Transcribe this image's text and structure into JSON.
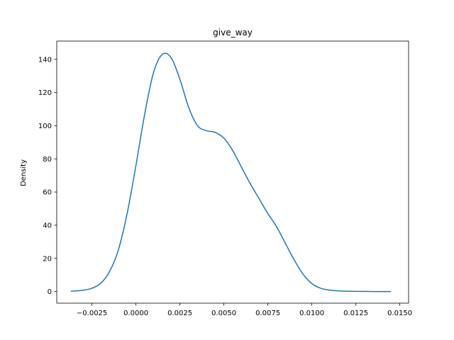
{
  "chart_data": {
    "type": "line",
    "title": "give_way",
    "xlabel": "",
    "ylabel": "Density",
    "xlim": [
      -0.0045,
      0.0155
    ],
    "ylim": [
      -7,
      151
    ],
    "xticks": [
      -0.0025,
      0.0,
      0.0025,
      0.005,
      0.0075,
      0.01,
      0.0125,
      0.015
    ],
    "xtick_labels": [
      "−0.0025",
      "0.0000",
      "0.0025",
      "0.0050",
      "0.0075",
      "0.0100",
      "0.0125",
      "0.0150"
    ],
    "yticks": [
      0,
      20,
      40,
      60,
      80,
      100,
      120,
      140
    ],
    "ytick_labels": [
      "0",
      "20",
      "40",
      "60",
      "80",
      "100",
      "120",
      "140"
    ],
    "grid": false,
    "line_color": "#1f77b4",
    "series": [
      {
        "x": [
          -0.0037,
          -0.003,
          -0.0025,
          -0.002,
          -0.0015,
          -0.001,
          -0.0005,
          0.0,
          0.0005,
          0.001,
          0.0015,
          0.002,
          0.0025,
          0.003,
          0.0035,
          0.004,
          0.0045,
          0.005,
          0.0055,
          0.006,
          0.0065,
          0.007,
          0.0075,
          0.008,
          0.0085,
          0.009,
          0.0095,
          0.01,
          0.0105,
          0.011,
          0.0115,
          0.012,
          0.0125,
          0.013,
          0.0135,
          0.014,
          0.0145
        ],
        "values": [
          0.2,
          0.8,
          2.0,
          5.0,
          12.0,
          25.0,
          47.0,
          76.0,
          107.0,
          132.0,
          143.0,
          141.0,
          128.0,
          111.0,
          100.0,
          97.0,
          96.0,
          92.5,
          85.0,
          75.0,
          65.0,
          56.0,
          47.0,
          39.0,
          29.0,
          19.0,
          10.5,
          4.8,
          2.0,
          0.9,
          0.4,
          0.2,
          0.1,
          0.1,
          0.0,
          0.0,
          0.0
        ]
      }
    ]
  }
}
